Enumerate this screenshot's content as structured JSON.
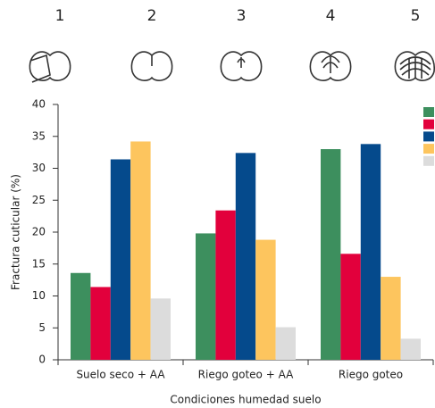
{
  "chart_data": {
    "type": "bar",
    "x_label": "Condiciones humedad suelo",
    "y_label": "Fractura cuticular (%)",
    "categories": [
      "Suelo seco + AA",
      "Riego goteo + AA",
      "Riego goteo"
    ],
    "series": [
      {
        "name": "1",
        "color": "#3d8f5e",
        "values": [
          13.6,
          19.8,
          33.0
        ]
      },
      {
        "name": "2",
        "color": "#e2003c",
        "values": [
          11.4,
          23.4,
          16.6
        ]
      },
      {
        "name": "3",
        "color": "#054a8c",
        "values": [
          31.4,
          32.4,
          33.8
        ]
      },
      {
        "name": "4",
        "color": "#fdc55e",
        "values": [
          34.2,
          18.8,
          13.0
        ]
      },
      {
        "name": "5",
        "color": "#dcdcdc",
        "values": [
          9.6,
          5.1,
          3.3
        ]
      }
    ],
    "ylim": [
      0,
      40
    ],
    "yticks": [
      0,
      5,
      10,
      15,
      20,
      25,
      30,
      35,
      40
    ],
    "grid": false
  }
}
